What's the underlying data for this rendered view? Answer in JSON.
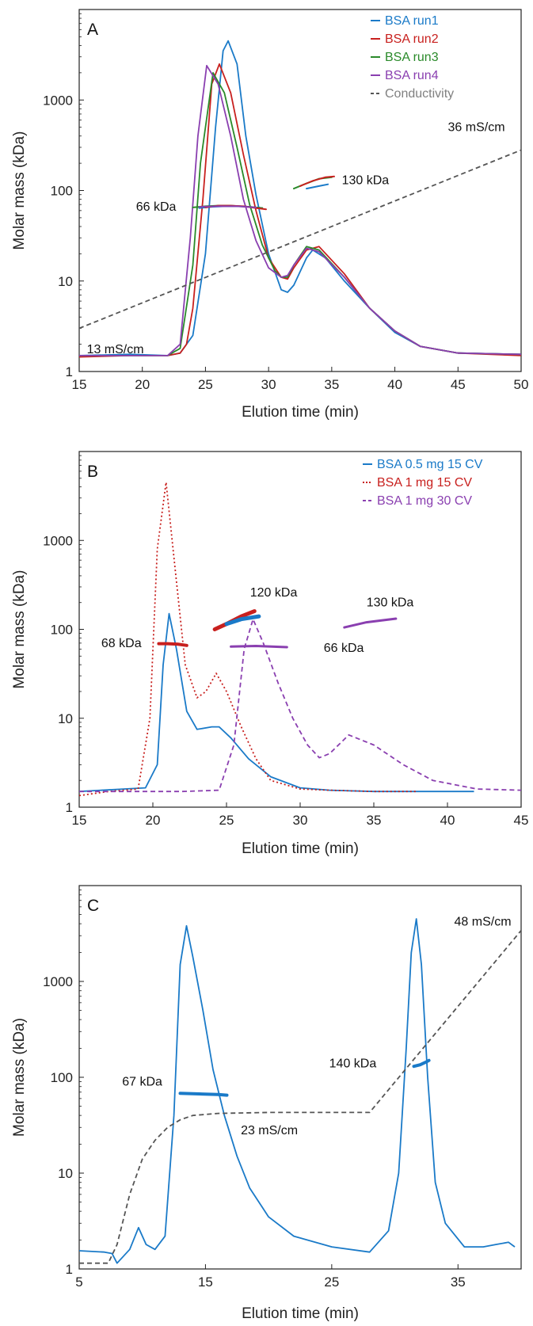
{
  "chart_data": [
    {
      "type": "line",
      "panel_label": "A",
      "xlabel": "Elution time (min)",
      "ylabel": "Molar mass (kDa)",
      "xlim": [
        15,
        50
      ],
      "ylim": [
        1,
        10000
      ],
      "yscale": "log",
      "xticks": [
        15,
        20,
        25,
        30,
        35,
        40,
        45,
        50
      ],
      "yticks": [
        1,
        10,
        100,
        1000
      ],
      "grid": false,
      "legend_position": "top-right",
      "series": [
        {
          "name": "BSA run1",
          "color": "#1a7ac8",
          "dash": "solid",
          "x": [
            15,
            19,
            22,
            23,
            24,
            25,
            25.8,
            26.4,
            26.8,
            27.5,
            28.2,
            29,
            30,
            31,
            31.5,
            32,
            33,
            33.5,
            34.5,
            36,
            38,
            40,
            42,
            45,
            50
          ],
          "y": [
            1.5,
            1.55,
            1.5,
            1.6,
            2.5,
            20,
            500,
            3500,
            4500,
            2500,
            400,
            90,
            20,
            8,
            7.5,
            9,
            18,
            22,
            18,
            10,
            5,
            2.7,
            1.9,
            1.6,
            1.55
          ]
        },
        {
          "name": "BSA run2",
          "color": "#c8201e",
          "dash": "solid",
          "x": [
            15,
            19,
            22,
            23,
            23.5,
            24,
            24.8,
            25.5,
            26.1,
            27,
            28,
            29,
            30,
            31,
            31.5,
            32,
            33,
            34,
            36,
            38,
            40,
            42,
            45,
            50
          ],
          "y": [
            1.45,
            1.5,
            1.5,
            1.6,
            2,
            5,
            80,
            1500,
            2500,
            1200,
            250,
            60,
            18,
            11,
            10.5,
            14,
            22,
            24,
            12,
            5,
            2.8,
            1.9,
            1.6,
            1.5
          ]
        },
        {
          "name": "BSA run3",
          "color": "#2a8a2a",
          "dash": "solid",
          "x": [
            15,
            19,
            22,
            23,
            24,
            24.6,
            25.6,
            26.5,
            27.5,
            28.5,
            29.5,
            30.5,
            31,
            31.5,
            32,
            33,
            34,
            36,
            38,
            40,
            42,
            45,
            50
          ],
          "y": [
            1.5,
            1.5,
            1.5,
            1.8,
            15,
            200,
            2000,
            1200,
            300,
            70,
            25,
            13,
            11,
            11,
            15,
            24,
            22,
            11,
            5,
            2.8,
            1.9,
            1.6,
            1.55
          ]
        },
        {
          "name": "BSA run4",
          "color": "#8a3fb0",
          "dash": "solid",
          "x": [
            15,
            19,
            22,
            23,
            23.8,
            24.4,
            25.1,
            26,
            27,
            28,
            29,
            30,
            31,
            31.5,
            32,
            33,
            34,
            36,
            38,
            40,
            42,
            45,
            50
          ],
          "y": [
            1.5,
            1.5,
            1.5,
            2,
            30,
            400,
            2400,
            1500,
            400,
            80,
            28,
            14,
            11,
            11.5,
            15,
            23,
            21,
            11,
            5,
            2.8,
            1.9,
            1.6,
            1.55
          ]
        },
        {
          "name": "Conductivity",
          "color": "#555555",
          "dash": "dashed",
          "x": [
            15,
            50
          ],
          "y": [
            3,
            280
          ]
        }
      ],
      "mass_segments": [
        {
          "color": "#1a7ac8",
          "x": [
            24.5,
            25.5,
            26.5,
            27.5,
            28.5,
            29.5
          ],
          "y": [
            64,
            66,
            67,
            67,
            66,
            64
          ],
          "width": 2
        },
        {
          "color": "#2a8a2a",
          "x": [
            24,
            25,
            26,
            27,
            28.5,
            29.5
          ],
          "y": [
            65,
            67,
            68,
            68,
            66,
            64
          ],
          "width": 2
        },
        {
          "color": "#c8201e",
          "x": [
            25,
            26,
            27,
            28,
            29,
            29.8
          ],
          "y": [
            65,
            68,
            68,
            67,
            64,
            62
          ],
          "width": 2
        },
        {
          "color": "#8a3fb0",
          "x": [
            24.5,
            26,
            27.5,
            29
          ],
          "y": [
            66,
            67,
            67,
            65
          ],
          "width": 2
        },
        {
          "color": "#2a8a2a",
          "x": [
            32,
            33,
            34,
            35
          ],
          "y": [
            105,
            120,
            135,
            140
          ],
          "width": 2
        },
        {
          "color": "#c8201e",
          "x": [
            32.5,
            33.5,
            34.5,
            35.2
          ],
          "y": [
            112,
            128,
            140,
            143
          ],
          "width": 2
        },
        {
          "color": "#1a7ac8",
          "x": [
            33,
            34,
            34.7
          ],
          "y": [
            105,
            112,
            117
          ],
          "width": 2
        }
      ],
      "annotations": [
        {
          "text": "66 kDa",
          "x": 19.5,
          "y": 66,
          "color": "#111111"
        },
        {
          "text": "130 kDa",
          "x": 35.8,
          "y": 130,
          "color": "#111111"
        },
        {
          "text": "36 mS/cm",
          "x": 44.2,
          "y": 500,
          "color": "#808080"
        },
        {
          "text": "13 mS/cm",
          "x": 15.6,
          "y": 1.75,
          "color": "#808080"
        }
      ]
    },
    {
      "type": "line",
      "panel_label": "B",
      "xlabel": "Elution time (min)",
      "ylabel": "Molar mass (kDa)",
      "xlim": [
        15,
        45
      ],
      "ylim": [
        1,
        10000
      ],
      "yscale": "log",
      "xticks": [
        15,
        20,
        25,
        30,
        35,
        40,
        45
      ],
      "yticks": [
        1,
        10,
        100,
        1000
      ],
      "grid": false,
      "legend_position": "top-right",
      "series": [
        {
          "name": "BSA 0.5 mg 15 CV",
          "color": "#1a7ac8",
          "dash": "solid",
          "x": [
            15,
            18,
            19.5,
            20.3,
            20.7,
            21.1,
            21.6,
            22.3,
            23,
            24,
            24.5,
            25.3,
            26.5,
            28,
            30,
            32,
            35,
            41.8
          ],
          "y": [
            1.5,
            1.6,
            1.65,
            3,
            40,
            150,
            60,
            12,
            7.5,
            8,
            8,
            6,
            3.5,
            2.2,
            1.65,
            1.55,
            1.5,
            1.5
          ]
        },
        {
          "name": "BSA 1 mg 15 CV",
          "color": "#c8201e",
          "dash": "dotted",
          "x": [
            15,
            17,
            19,
            19.8,
            20.3,
            20.9,
            21.5,
            22.2,
            23,
            23.6,
            24.3,
            25,
            26,
            27,
            28,
            30,
            32,
            35,
            38
          ],
          "y": [
            1.35,
            1.5,
            1.6,
            10,
            800,
            4500,
            500,
            40,
            17,
            20,
            32,
            20,
            8,
            3.5,
            2,
            1.6,
            1.55,
            1.5,
            1.5
          ]
        },
        {
          "name": "BSA 1 mg 30 CV",
          "color": "#8a3fb0",
          "dash": "dashed",
          "x": [
            15,
            22,
            24.5,
            25.5,
            26.2,
            26.8,
            27.5,
            28.5,
            29.5,
            30.5,
            31.3,
            32,
            33.3,
            35,
            37,
            39,
            42,
            45
          ],
          "y": [
            1.5,
            1.5,
            1.55,
            5,
            60,
            130,
            70,
            25,
            10,
            5,
            3.6,
            4,
            6.5,
            5,
            3,
            2,
            1.6,
            1.55
          ]
        }
      ],
      "mass_segments": [
        {
          "color": "#c8201e",
          "x": [
            20.4,
            21,
            21.7,
            22.3
          ],
          "y": [
            69,
            69,
            68,
            66
          ],
          "width": 4
        },
        {
          "color": "#c8201e",
          "x": [
            24.2,
            25,
            26,
            26.9
          ],
          "y": [
            100,
            115,
            140,
            160
          ],
          "width": 5
        },
        {
          "color": "#1a7ac8",
          "x": [
            25,
            26,
            27.2
          ],
          "y": [
            115,
            130,
            140
          ],
          "width": 5
        },
        {
          "color": "#8a3fb0",
          "x": [
            25.3,
            27,
            29.1
          ],
          "y": [
            64,
            65,
            63
          ],
          "width": 3
        },
        {
          "color": "#8a3fb0",
          "x": [
            33,
            34.5,
            36.5
          ],
          "y": [
            105,
            120,
            132
          ],
          "width": 3
        }
      ],
      "annotations": [
        {
          "text": "120 kDa",
          "x": 26.6,
          "y": 260,
          "color": "#111111"
        },
        {
          "text": "130 kDa",
          "x": 34.5,
          "y": 200,
          "color": "#111111"
        },
        {
          "text": "68 kDa",
          "x": 16.5,
          "y": 70,
          "color": "#111111"
        },
        {
          "text": "66 kDa",
          "x": 31.6,
          "y": 62,
          "color": "#111111"
        }
      ]
    },
    {
      "type": "line",
      "panel_label": "C",
      "xlabel": "Elution time (min)",
      "ylabel": "Molar mass (kDa)",
      "xlim": [
        5,
        40
      ],
      "ylim": [
        1,
        10000
      ],
      "yscale": "log",
      "xticks": [
        5,
        15,
        25,
        35
      ],
      "yticks": [
        1,
        10,
        100,
        1000
      ],
      "grid": false,
      "legend_position": "none",
      "series": [
        {
          "name": "",
          "color": "#1a7ac8",
          "dash": "solid",
          "x": [
            5,
            7,
            7.6,
            8,
            9,
            9.7,
            10.3,
            11,
            11.8,
            12.5,
            13,
            13.5,
            14,
            14.8,
            15.6,
            16.5,
            17.5,
            18.5,
            20,
            22,
            25,
            28,
            29.5,
            30.3,
            30.9,
            31.3,
            31.7,
            32.1,
            32.6,
            33.2,
            34,
            35.5,
            37,
            38,
            39,
            39.5
          ],
          "y": [
            1.55,
            1.5,
            1.45,
            1.15,
            1.6,
            2.7,
            1.8,
            1.6,
            2.2,
            40,
            1500,
            3800,
            1800,
            500,
            120,
            40,
            15,
            7,
            3.5,
            2.2,
            1.7,
            1.5,
            2.5,
            10,
            200,
            2000,
            4500,
            1500,
            100,
            8,
            3,
            1.7,
            1.7,
            1.8,
            1.9,
            1.7
          ]
        },
        {
          "name": "",
          "color": "#555555",
          "dash": "dashed",
          "x": [
            5,
            7.3,
            8,
            9,
            10,
            11,
            12,
            13,
            14,
            16,
            20,
            28,
            40
          ],
          "y": [
            1.15,
            1.15,
            1.8,
            6,
            14,
            22,
            30,
            36,
            40,
            42,
            43,
            43,
            3400
          ]
        }
      ],
      "mass_segments": [
        {
          "color": "#1a7ac8",
          "x": [
            13,
            14.5,
            16,
            16.7
          ],
          "y": [
            68,
            67,
            66,
            65
          ],
          "width": 4
        },
        {
          "color": "#1a7ac8",
          "x": [
            31.5,
            32,
            32.5,
            32.7
          ],
          "y": [
            130,
            135,
            145,
            150
          ],
          "width": 4
        }
      ],
      "annotations": [
        {
          "text": "67 kDa",
          "x": 8.4,
          "y": 90,
          "color": "#111111"
        },
        {
          "text": "140 kDa",
          "x": 24.8,
          "y": 140,
          "color": "#111111"
        },
        {
          "text": "48 mS/cm",
          "x": 34.7,
          "y": 4200,
          "color": "#808080"
        },
        {
          "text": "23 mS/cm",
          "x": 17.8,
          "y": 28,
          "color": "#808080"
        }
      ]
    }
  ]
}
